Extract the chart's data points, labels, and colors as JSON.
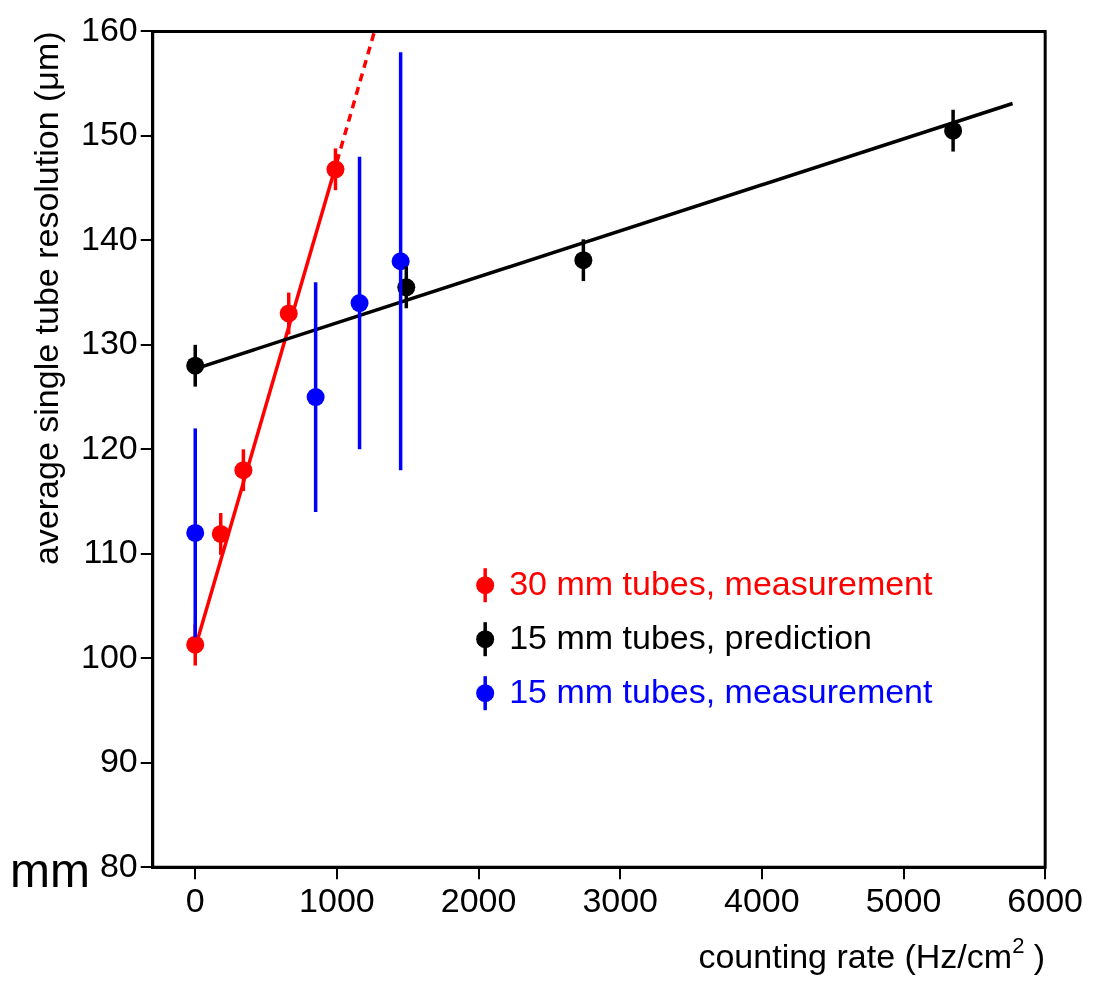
{
  "chart_data": {
    "type": "scatter",
    "xlabel": "counting rate (Hz/cm$^{2}$ )",
    "ylabel": "average single tube resolution (μm)",
    "annotations": [
      "mm"
    ],
    "xlim": [
      -300,
      6000
    ],
    "xticks": [
      0,
      1000,
      2000,
      3000,
      4000,
      5000,
      6000
    ],
    "ylim": [
      80,
      160
    ],
    "yticks": [
      80,
      90,
      100,
      110,
      120,
      130,
      140,
      150,
      160
    ],
    "grid": false,
    "legend": "bottom right",
    "marker": "circle",
    "series": [
      {
        "name": "30 mm tubes, measurement",
        "type": "scatter",
        "color": "#ff0000",
        "x": [
          0,
          180,
          340,
          660,
          990
        ],
        "values": [
          101.3,
          111.9,
          118,
          133,
          146.8
        ],
        "errors": [
          2,
          2,
          2,
          2,
          2
        ]
      },
      {
        "name": "15 mm tubes, prediction",
        "type": "scatter",
        "color": "#000000",
        "x": [
          0,
          1490,
          2740,
          5350
        ],
        "values": [
          128,
          135.5,
          138.1,
          150.5
        ],
        "errors": [
          2,
          2,
          2,
          2
        ]
      },
      {
        "name": "15 mm tubes, measurement",
        "type": "scatter",
        "color": "#0000ff",
        "x": [
          0,
          850,
          1160,
          1450
        ],
        "values": [
          112,
          125,
          134,
          138
        ],
        "errors": [
          [
            102,
            122
          ],
          [
            114,
            136
          ],
          [
            120,
            148
          ],
          [
            118,
            158
          ]
        ]
      },
      {
        "type": "line",
        "color": "#000000",
        "x": [
          0,
          5770
        ],
        "values": [
          127.7,
          153.1
        ],
        "line_style": "solid",
        "marker": "none"
      },
      {
        "type": "line",
        "color": "#ff0000",
        "x": [
          0,
          1000
        ],
        "values": [
          101,
          147.5
        ],
        "line_style": "solid",
        "marker": "none"
      },
      {
        "type": "line",
        "color": "#ff0000",
        "x": [
          1000,
          1265
        ],
        "values": [
          147.5,
          160
        ],
        "line_style": "dashed",
        "marker": "none"
      }
    ]
  }
}
